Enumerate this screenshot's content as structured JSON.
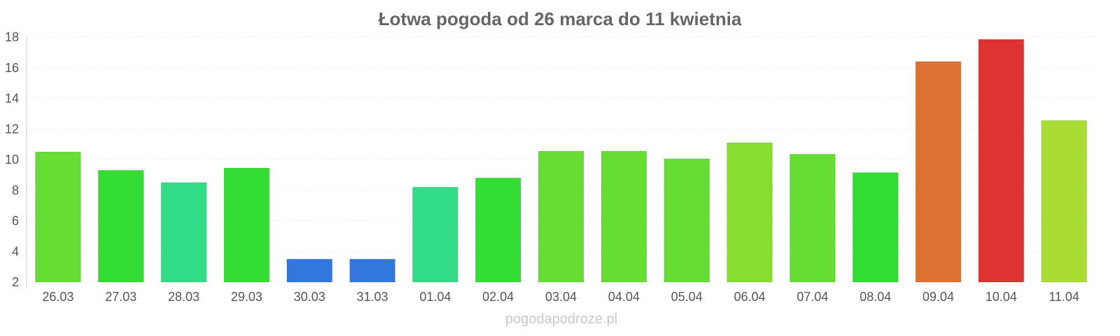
{
  "chart_data": {
    "type": "bar",
    "title": "Łotwa pogoda od 26 marca do 11 kwietnia",
    "categories": [
      "26.03",
      "27.03",
      "28.03",
      "29.03",
      "30.03",
      "31.03",
      "01.04",
      "02.04",
      "03.04",
      "04.04",
      "05.04",
      "06.04",
      "07.04",
      "08.04",
      "09.04",
      "10.04",
      "11.04"
    ],
    "values": [
      10.5,
      9.3,
      8.5,
      9.45,
      3.5,
      3.5,
      8.2,
      8.8,
      10.55,
      10.55,
      10.05,
      11.1,
      10.35,
      9.15,
      16.4,
      17.85,
      12.55
    ],
    "colors": [
      "#66dd33",
      "#33dd33",
      "#33dd88",
      "#33dd33",
      "#3377dd",
      "#3377dd",
      "#33dd88",
      "#33dd33",
      "#66dd33",
      "#66dd33",
      "#66dd33",
      "#88dd33",
      "#66dd33",
      "#33dd33",
      "#dd7033",
      "#dd3333",
      "#aadd33"
    ],
    "xlabel": "",
    "ylabel": "",
    "ylim": [
      2,
      18
    ],
    "yticks": [
      2,
      4,
      6,
      8,
      10,
      12,
      14,
      16,
      18
    ],
    "grid": true,
    "legend": "none"
  },
  "watermark": "pogodapodroze.pl"
}
